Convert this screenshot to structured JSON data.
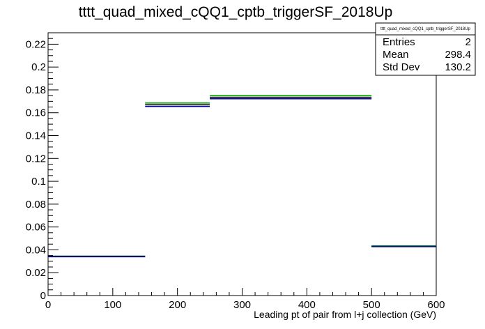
{
  "chart_data": {
    "type": "bar",
    "title": "tttt_quad_mixed_cQQ1_cptb_triggerSF_2018Up",
    "xlabel": "Leading pt of pair from l+j collection (GeV)",
    "ylabel": "",
    "xlim": [
      0,
      600
    ],
    "ylim": [
      0,
      0.23
    ],
    "x_ticks": [
      0,
      100,
      200,
      300,
      400,
      500,
      600
    ],
    "x_tick_labels": [
      "0",
      "100",
      "200",
      "300",
      "400",
      "500",
      "600"
    ],
    "y_ticks": [
      0,
      0.02,
      0.04,
      0.06,
      0.08,
      0.1,
      0.12,
      0.14,
      0.16,
      0.18,
      0.2,
      0.22
    ],
    "y_tick_labels": [
      "0",
      "0.02",
      "0.04",
      "0.06",
      "0.08",
      "0.1",
      "0.12",
      "0.14",
      "0.16",
      "0.18",
      "0.2",
      "0.22"
    ],
    "grid": false,
    "bin_edges": [
      0,
      150,
      250,
      500,
      600
    ],
    "series": [
      {
        "color": "#00aa00",
        "values": [
          0.0345,
          0.1685,
          0.175,
          0.0435
        ]
      },
      {
        "color": "#000000",
        "values": [
          0.0343,
          0.167,
          0.1735,
          0.043
        ]
      },
      {
        "color": "#0000aa",
        "values": [
          0.034,
          0.1655,
          0.1722,
          0.0428
        ]
      }
    ],
    "stats": {
      "title": "tttt_quad_mixed_cQQ1_cptb_triggerSF_2018Up",
      "rows": [
        {
          "label": "Entries",
          "value": "2"
        },
        {
          "label": "Mean",
          "value": "298.4"
        },
        {
          "label": "Std Dev",
          "value": "130.2"
        }
      ],
      "placement": "top-right"
    }
  }
}
